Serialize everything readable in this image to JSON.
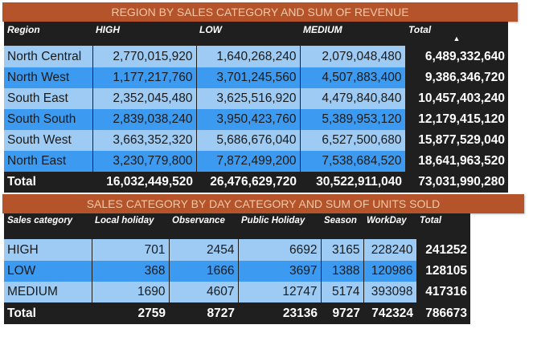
{
  "colors": {
    "banner_bg": "#B5532A",
    "banner_text": "#F2C9A8",
    "header_bg": "#1F1F1F",
    "row_light": "#9DCBF4",
    "row_dark": "#3C9BF0"
  },
  "table1": {
    "title": "REGION BY SALES CATEGORY AND SUM OF REVENUE",
    "headers": [
      "Region",
      "HIGH",
      "LOW",
      "MEDIUM",
      "Total"
    ],
    "sort_icon": "sort-ascending-icon",
    "rows": [
      {
        "region": "North Central",
        "high": "2,770,015,920",
        "low": "1,640,268,240",
        "medium": "2,079,048,480",
        "total": "6,489,332,640"
      },
      {
        "region": "North West",
        "high": "1,177,217,760",
        "low": "3,701,245,560",
        "medium": "4,507,883,400",
        "total": "9,386,346,720"
      },
      {
        "region": "South East",
        "high": "2,352,045,480",
        "low": "3,625,516,920",
        "medium": "4,479,840,840",
        "total": "10,457,403,240"
      },
      {
        "region": "South South",
        "high": "2,839,038,240",
        "low": "3,950,423,760",
        "medium": "5,389,953,120",
        "total": "12,179,415,120"
      },
      {
        "region": "South West",
        "high": "3,663,352,320",
        "low": "5,686,676,040",
        "medium": "6,527,500,680",
        "total": "15,877,529,040"
      },
      {
        "region": "North East",
        "high": "3,230,779,800",
        "low": "7,872,499,200",
        "medium": "7,538,684,520",
        "total": "18,641,963,520"
      }
    ],
    "total_row": {
      "label": "Total",
      "high": "16,032,449,520",
      "low": "26,476,629,720",
      "medium": "30,522,911,040",
      "total": "73,031,990,280"
    }
  },
  "table2": {
    "title": "SALES CATEGORY BY DAY CATEGORY AND SUM OF UNITS SOLD",
    "headers": [
      "Sales category",
      "Local holiday",
      "Observance",
      "Public Holiday",
      "Season",
      "WorkDay",
      "Total"
    ],
    "rows": [
      {
        "category": "HIGH",
        "local_holiday": "701",
        "observance": "2454",
        "public_holiday": "6692",
        "season": "3165",
        "workday": "228240",
        "total": "241252"
      },
      {
        "category": "LOW",
        "local_holiday": "368",
        "observance": "1666",
        "public_holiday": "3697",
        "season": "1388",
        "workday": "120986",
        "total": "128105"
      },
      {
        "category": "MEDIUM",
        "local_holiday": "1690",
        "observance": "4607",
        "public_holiday": "12747",
        "season": "5174",
        "workday": "393098",
        "total": "417316"
      }
    ],
    "total_row": {
      "label": "Total",
      "local_holiday": "2759",
      "observance": "8727",
      "public_holiday": "23136",
      "season": "9727",
      "workday": "742324",
      "total": "786673"
    }
  }
}
